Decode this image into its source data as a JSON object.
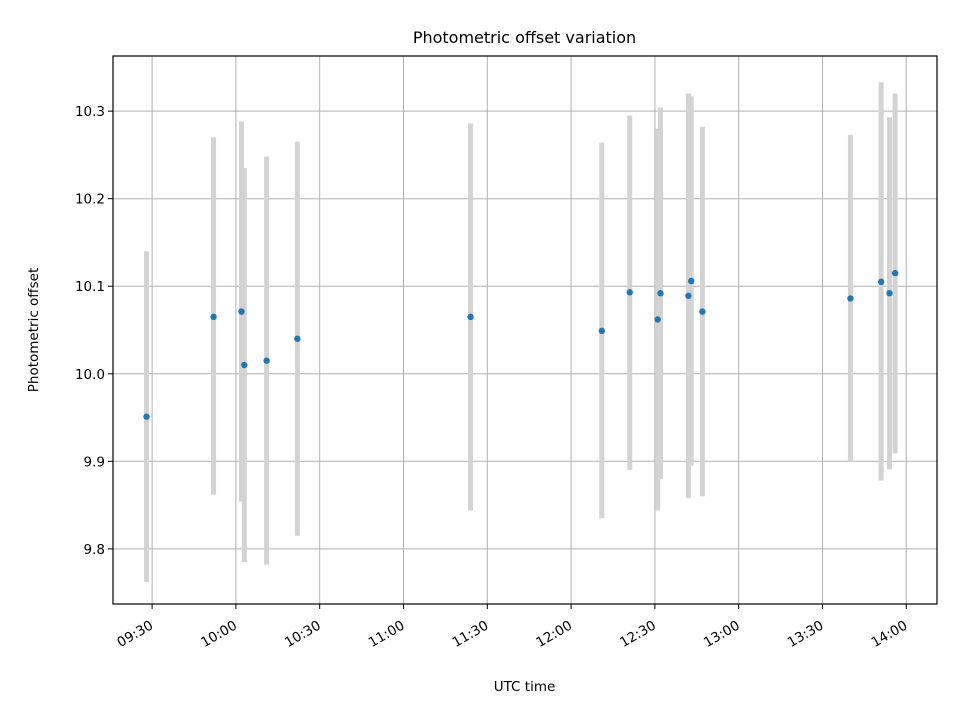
{
  "chart_data": {
    "type": "scatter",
    "title": "Photometric offset variation",
    "xlabel": "UTC time",
    "ylabel": "Photometric offset",
    "x_ticks": [
      "09:30",
      "10:00",
      "10:30",
      "11:00",
      "11:30",
      "12:00",
      "12:30",
      "13:00",
      "13:30",
      "14:00"
    ],
    "y_ticks": [
      "9.8",
      "9.9",
      "10.0",
      "10.1",
      "10.2",
      "10.3"
    ],
    "xlim": [
      "09:16",
      "14:11"
    ],
    "ylim": [
      9.737,
      10.363
    ],
    "grid": true,
    "colors": {
      "point": "#1f77b4",
      "errorbar": "#d3d3d3",
      "grid": "#b0b0b0"
    },
    "points": [
      {
        "x": "09:28",
        "y": 9.951,
        "ylow": 9.762,
        "yhigh": 10.14
      },
      {
        "x": "09:52",
        "y": 10.065,
        "ylow": 9.862,
        "yhigh": 10.27
      },
      {
        "x": "10:02",
        "y": 10.071,
        "ylow": 9.854,
        "yhigh": 10.288
      },
      {
        "x": "10:03",
        "y": 10.01,
        "ylow": 9.785,
        "yhigh": 10.235
      },
      {
        "x": "10:11",
        "y": 10.015,
        "ylow": 9.782,
        "yhigh": 10.248
      },
      {
        "x": "10:22",
        "y": 10.04,
        "ylow": 9.815,
        "yhigh": 10.265
      },
      {
        "x": "11:24",
        "y": 10.065,
        "ylow": 9.844,
        "yhigh": 10.286
      },
      {
        "x": "12:11",
        "y": 10.049,
        "ylow": 9.835,
        "yhigh": 10.264
      },
      {
        "x": "12:21",
        "y": 10.093,
        "ylow": 9.89,
        "yhigh": 10.295
      },
      {
        "x": "12:31",
        "y": 10.062,
        "ylow": 9.844,
        "yhigh": 10.28
      },
      {
        "x": "12:32",
        "y": 10.092,
        "ylow": 9.88,
        "yhigh": 10.304
      },
      {
        "x": "12:42",
        "y": 10.089,
        "ylow": 9.858,
        "yhigh": 10.32
      },
      {
        "x": "12:43",
        "y": 10.106,
        "ylow": 9.895,
        "yhigh": 10.317
      },
      {
        "x": "12:47",
        "y": 10.071,
        "ylow": 9.86,
        "yhigh": 10.282
      },
      {
        "x": "13:40",
        "y": 10.086,
        "ylow": 9.9,
        "yhigh": 10.273
      },
      {
        "x": "13:51",
        "y": 10.105,
        "ylow": 9.878,
        "yhigh": 10.333
      },
      {
        "x": "13:54",
        "y": 10.092,
        "ylow": 9.891,
        "yhigh": 10.293
      },
      {
        "x": "13:56",
        "y": 10.115,
        "ylow": 9.909,
        "yhigh": 10.32
      }
    ]
  }
}
